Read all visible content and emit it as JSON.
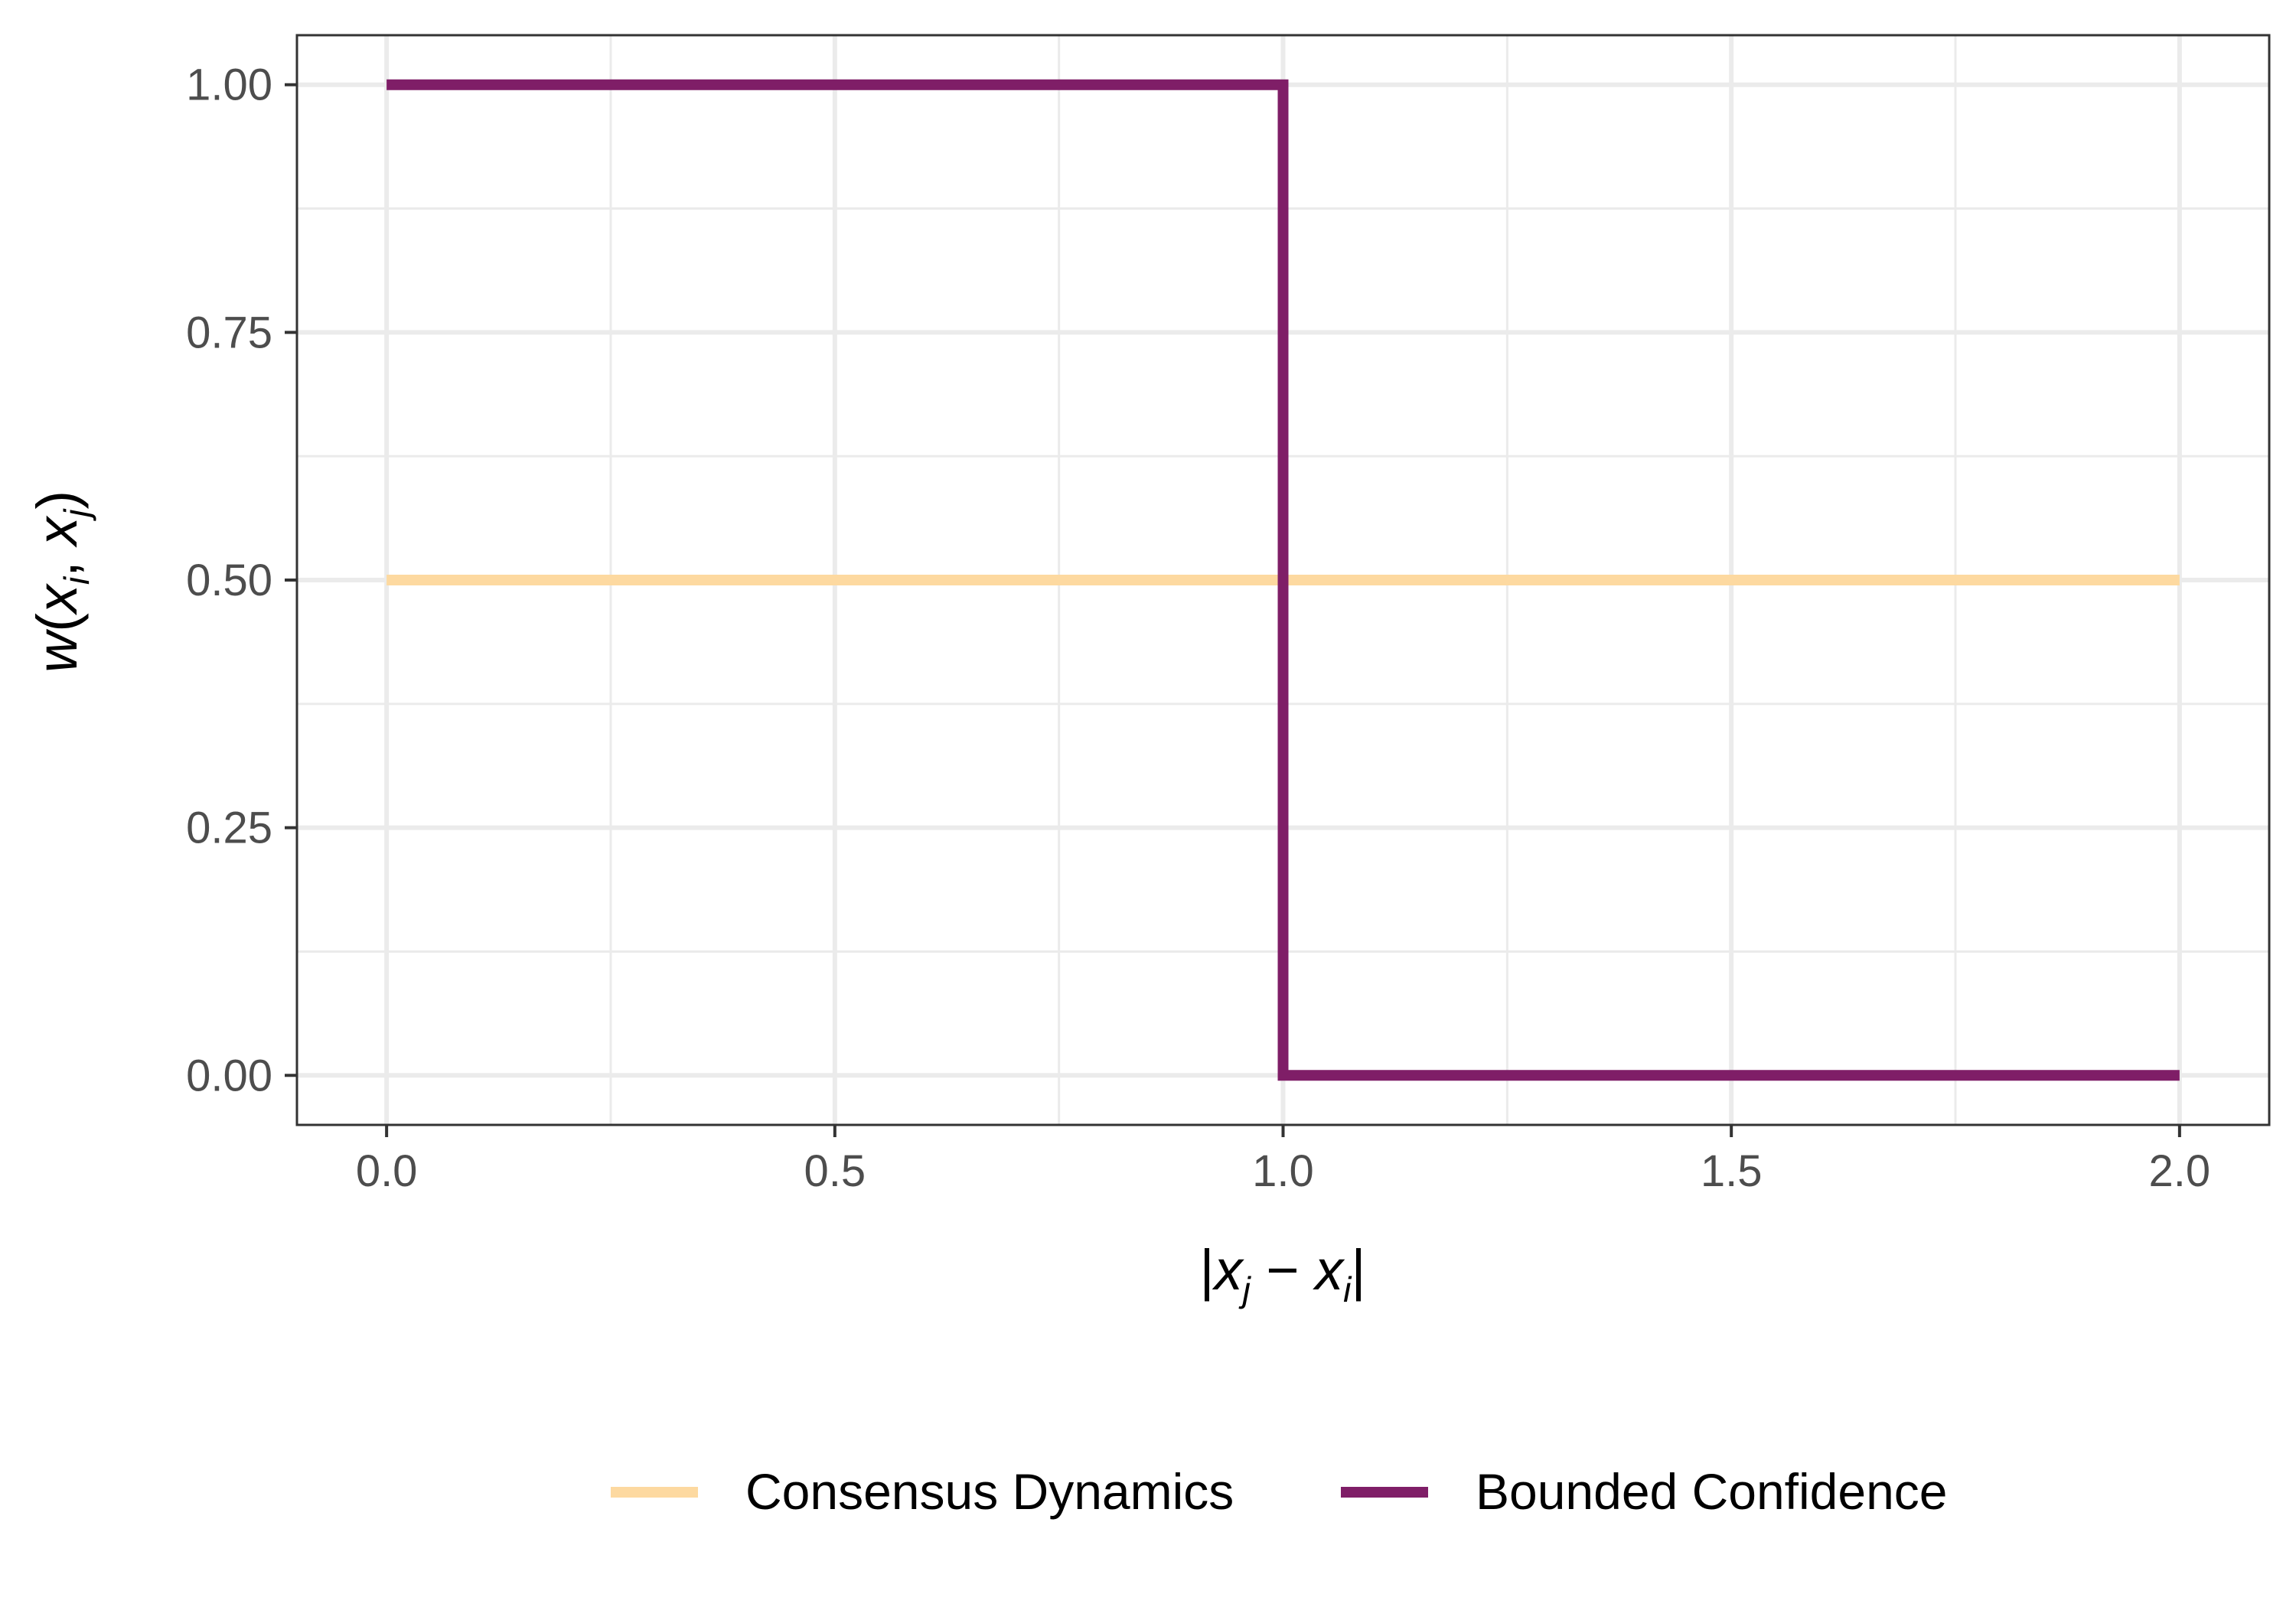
{
  "chart_data": {
    "type": "line",
    "title": "",
    "xlabel": "|x_j − x_i|",
    "ylabel": "w(x_i, x_j)",
    "xlim": [
      -0.1,
      2.1
    ],
    "ylim": [
      -0.05,
      1.05
    ],
    "x_ticks": [
      0.0,
      0.5,
      1.0,
      1.5,
      2.0
    ],
    "x_tick_labels": [
      "0.0",
      "0.5",
      "1.0",
      "1.5",
      "2.0"
    ],
    "y_ticks": [
      0.0,
      0.25,
      0.5,
      0.75,
      1.0
    ],
    "y_tick_labels": [
      "0.00",
      "0.25",
      "0.50",
      "0.75",
      "1.00"
    ],
    "grid": true,
    "legend_position": "bottom",
    "series": [
      {
        "name": "Consensus Dynamics",
        "color": "#fdd9a0",
        "x": [
          0.0,
          2.0
        ],
        "y": [
          0.5,
          0.5
        ]
      },
      {
        "name": "Bounded Confidence",
        "color": "#7f1e67",
        "x": [
          0.0,
          1.0,
          1.0,
          2.0
        ],
        "y": [
          1.0,
          1.0,
          0.0,
          0.0
        ]
      }
    ]
  }
}
